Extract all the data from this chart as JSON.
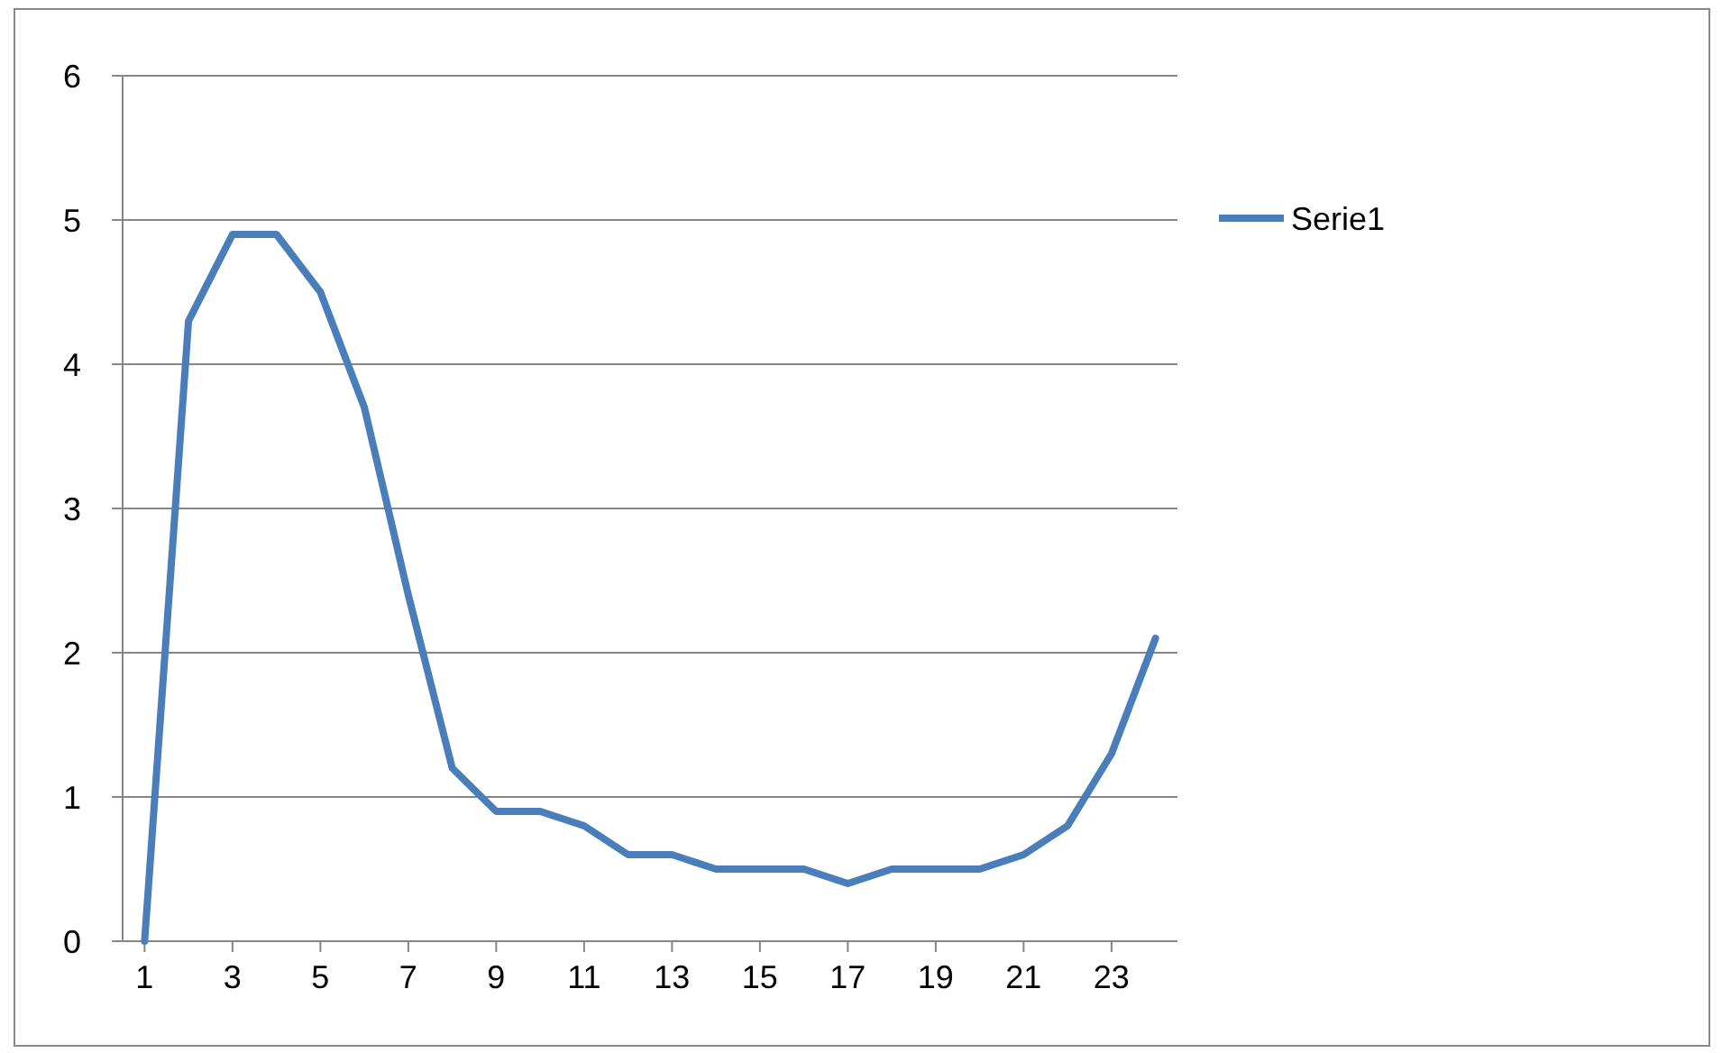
{
  "chart_data": {
    "type": "line",
    "x": [
      1,
      2,
      3,
      4,
      5,
      6,
      7,
      8,
      9,
      10,
      11,
      12,
      13,
      14,
      15,
      16,
      17,
      18,
      19,
      20,
      21,
      22,
      23,
      24
    ],
    "xlim": [
      0.5,
      24.5
    ],
    "xticks": [
      1,
      3,
      5,
      7,
      9,
      11,
      13,
      15,
      17,
      19,
      21,
      23
    ],
    "series": [
      {
        "name": "Serie1",
        "color": "#4a7ebb",
        "values": [
          0,
          4.3,
          4.9,
          4.9,
          4.5,
          3.7,
          2.4,
          1.2,
          0.9,
          0.9,
          0.8,
          0.6,
          0.6,
          0.5,
          0.5,
          0.5,
          0.4,
          0.5,
          0.5,
          0.5,
          0.6,
          0.8,
          1.3,
          2.1
        ]
      }
    ],
    "ylim": [
      0,
      6
    ],
    "yticks": [
      0,
      1,
      2,
      3,
      4,
      5,
      6
    ],
    "grid": "y",
    "legend": "right",
    "marker": "none",
    "line_style": "solid"
  }
}
